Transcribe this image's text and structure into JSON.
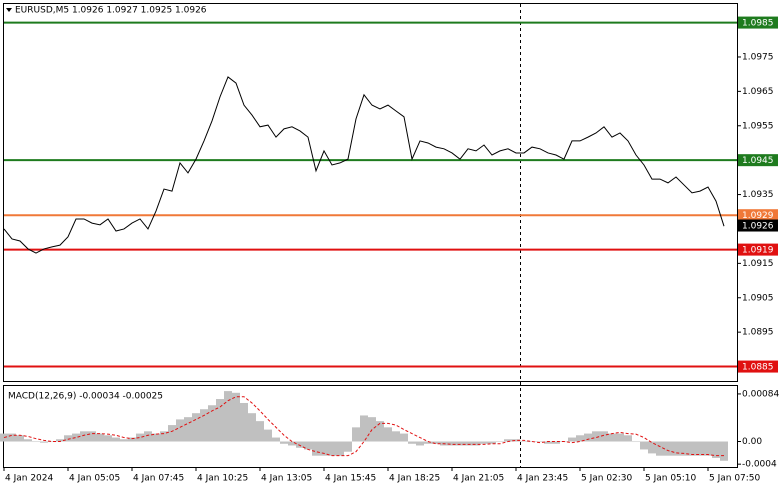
{
  "chart_data": [
    {
      "type": "line",
      "title": "EURUSD,M5  1.0926 1.0927 1.0925 1.0926",
      "color": "#000000",
      "categories": [
        "4 Jan 2024",
        null,
        null,
        null,
        null,
        null,
        null,
        null,
        "4 Jan 05:05",
        null,
        null,
        null,
        null,
        null,
        null,
        null,
        "4 Jan 07:45",
        null,
        null,
        null,
        null,
        null,
        null,
        null,
        "4 Jan 10:25",
        null,
        null,
        null,
        null,
        null,
        null,
        null,
        "4 Jan 13:05",
        null,
        null,
        null,
        null,
        null,
        null,
        null,
        "4 Jan 15:45",
        null,
        null,
        null,
        null,
        null,
        null,
        null,
        "4 Jan 18:25",
        null,
        null,
        null,
        null,
        null,
        null,
        null,
        "4 Jan 21:05",
        null,
        null,
        null,
        null,
        null,
        null,
        null,
        "4 Jan 23:45",
        null,
        null,
        null,
        null,
        null,
        null,
        null,
        "5 Jan 02:30",
        null,
        null,
        null,
        null,
        null,
        null,
        null,
        "5 Jan 05:10",
        null,
        null,
        null,
        null,
        null,
        null,
        null,
        "5 Jan 07:50",
        null,
        null
      ],
      "values": [
        1.0925,
        1.09221,
        1.09215,
        1.09192,
        1.0918,
        1.09192,
        1.09198,
        1.09203,
        1.09227,
        1.09279,
        1.09279,
        1.09267,
        1.09262,
        1.09279,
        1.09244,
        1.0925,
        1.09267,
        1.09279,
        1.0925,
        1.09302,
        1.09366,
        1.0936,
        1.09442,
        1.09413,
        1.09453,
        1.09506,
        1.09564,
        1.09634,
        1.09692,
        1.09674,
        1.0961,
        1.09581,
        1.09547,
        1.09552,
        1.09517,
        1.09541,
        1.09547,
        1.09535,
        1.09517,
        1.09419,
        1.09477,
        1.09436,
        1.09442,
        1.09453,
        1.0957,
        1.0964,
        1.0961,
        1.09599,
        1.0961,
        1.09593,
        1.09576,
        1.09453,
        1.09506,
        1.095,
        1.09488,
        1.09483,
        1.09471,
        1.09453,
        1.09483,
        1.09477,
        1.09494,
        1.09465,
        1.09477,
        1.09483,
        1.09471,
        1.09471,
        1.09488,
        1.09483,
        1.09471,
        1.09465,
        1.09453,
        1.09506,
        1.09506,
        1.09517,
        1.09529,
        1.09547,
        1.09517,
        1.09529,
        1.09506,
        1.09465,
        1.09436,
        1.09395,
        1.09395,
        1.09384,
        1.09401,
        1.09378,
        1.09355,
        1.0936,
        1.09372,
        1.09331,
        1.09258
      ],
      "ylim": [
        1.08808,
        1.09904
      ],
      "yticks": [
        1.0975,
        1.0965,
        1.0955,
        1.0935,
        1.0915,
        1.0905,
        1.0895
      ],
      "levels": [
        {
          "value": 1.0985,
          "color": "#1e7b1e"
        },
        {
          "value": 1.0945,
          "color": "#1e7b1e"
        },
        {
          "value": 1.0929,
          "color": "#f07838"
        },
        {
          "value": 1.0919,
          "color": "#e01010"
        },
        {
          "value": 1.0885,
          "color": "#e01010"
        }
      ],
      "last": 1.0926
    },
    {
      "type": "macd",
      "title": "MACD(12,26,9) -0.00034 -0.00025",
      "histogram": {
        "color": "#c0c0c0",
        "values": [
          0.00014,
          0.00014,
          0.00011,
          4e-05,
          0,
          -2e-05,
          0,
          4e-05,
          0.00011,
          0.00014,
          0.00018,
          0.00018,
          0.00014,
          0.00011,
          7e-05,
          4e-05,
          7e-05,
          0.00014,
          0.00018,
          0.00014,
          0.00018,
          0.00029,
          0.00039,
          0.00043,
          0.0005,
          0.00057,
          0.00064,
          0.00075,
          0.00089,
          0.00086,
          0.00068,
          0.0005,
          0.00036,
          0.00021,
          7e-05,
          -4e-05,
          -7e-05,
          -0.00011,
          -0.00014,
          -0.00025,
          -0.00025,
          -0.00025,
          -0.00025,
          -0.00018,
          0.00025,
          0.00046,
          0.00043,
          0.00036,
          0.00025,
          0.00018,
          0.00014,
          -4e-05,
          -7e-05,
          -4e-05,
          -4e-05,
          -7e-05,
          -7e-05,
          -7e-05,
          -7e-05,
          -7e-05,
          -4e-05,
          -4e-05,
          0,
          4e-05,
          4e-05,
          0,
          0,
          0,
          -4e-05,
          -4e-05,
          0,
          7e-05,
          0.00011,
          0.00014,
          0.00018,
          0.00018,
          0.00014,
          0.00014,
          0.00011,
          0,
          -0.00014,
          -0.00021,
          -0.00025,
          -0.00025,
          -0.00025,
          -0.00025,
          -0.00025,
          -0.00025,
          -0.00025,
          -0.00029,
          -0.00034
        ]
      },
      "signal": {
        "color": "#e01010",
        "values": [
          7e-05,
          0.00011,
          0.00011,
          9e-05,
          5e-05,
          2e-05,
          0,
          0,
          4e-05,
          7e-05,
          0.00011,
          0.00014,
          0.00014,
          0.00013,
          0.00011,
          7e-05,
          5e-05,
          7e-05,
          0.00011,
          0.00013,
          0.00014,
          0.00018,
          0.00025,
          0.00032,
          0.00039,
          0.00046,
          0.00054,
          0.00061,
          0.00072,
          0.00079,
          0.00079,
          0.00068,
          0.00054,
          0.00039,
          0.00025,
          0.00011,
          0,
          -7e-05,
          -0.00014,
          -0.00018,
          -0.00021,
          -0.00025,
          -0.00025,
          -0.00025,
          -0.00018,
          0,
          0.00021,
          0.00032,
          0.00032,
          0.00029,
          0.00021,
          0.00014,
          7e-05,
          0,
          -4e-05,
          -4e-05,
          -5e-05,
          -5e-05,
          -5e-05,
          -5e-05,
          -5e-05,
          -4e-05,
          -4e-05,
          0,
          2e-05,
          2e-05,
          0,
          -2e-05,
          0,
          0,
          0,
          -2e-05,
          0,
          4e-05,
          7e-05,
          0.00011,
          0.00014,
          0.00016,
          0.00014,
          0.00013,
          7e-05,
          -2e-05,
          -9e-05,
          -0.00016,
          -0.0002,
          -0.00021,
          -0.00023,
          -0.00023,
          -0.00023,
          -0.00025,
          -0.00025
        ]
      },
      "ylim": [
        -0.00045,
        0.00098
      ],
      "yticks": [
        0.00084,
        {
          "value": 0,
          "label": "0.00"
        },
        -0.0004
      ]
    }
  ]
}
